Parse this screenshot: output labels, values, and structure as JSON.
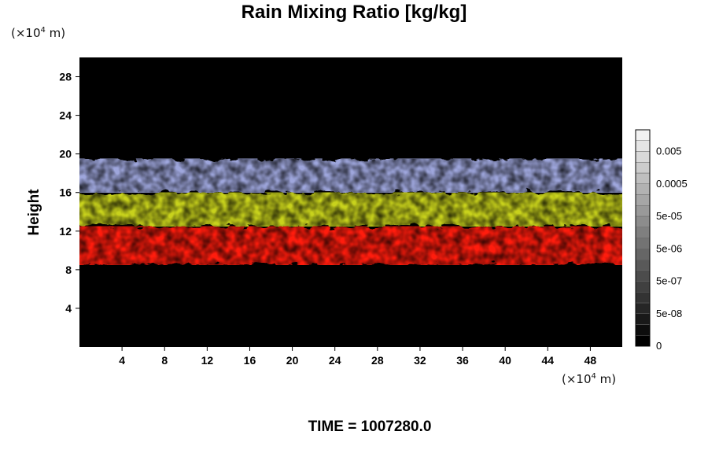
{
  "chart_data": {
    "type": "heatmap",
    "title": "Rain Mixing Ratio [kg/kg]",
    "ylabel": "Height",
    "y_unit": {
      "prefix": "(×10",
      "exp": "4",
      "suffix": " m)"
    },
    "x_unit": {
      "prefix": "(×10",
      "exp": "4",
      "suffix": " m)"
    },
    "xlim": [
      0,
      51
    ],
    "ylim": [
      0,
      30
    ],
    "x_ticks": [
      4,
      8,
      12,
      16,
      20,
      24,
      28,
      32,
      36,
      40,
      44,
      48
    ],
    "y_ticks": [
      4,
      8,
      12,
      16,
      20,
      24,
      28
    ],
    "colorbar": {
      "scale": "log",
      "labels": [
        "0",
        "5e-08",
        "5e-07",
        "5e-06",
        "5e-05",
        "0.0005",
        "0.005"
      ],
      "levels": 20,
      "low_color": "#000000",
      "high_color": "#f2f2f2"
    },
    "layers": [
      {
        "name": "red",
        "color": "#ff1a10",
        "y_range": [
          8.5,
          12.5
        ]
      },
      {
        "name": "yellow",
        "color": "#c8d21a",
        "y_range": [
          12.5,
          16
        ]
      },
      {
        "name": "blue-white",
        "color": "#9ea6dc",
        "y_range": [
          16,
          19.5
        ]
      }
    ],
    "footer": "TIME = 1007280.0"
  }
}
